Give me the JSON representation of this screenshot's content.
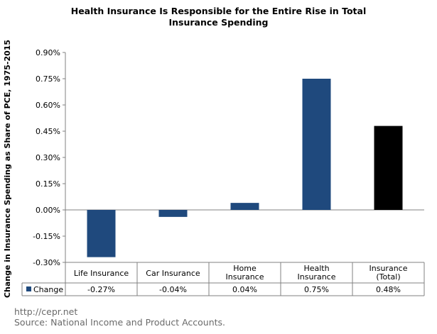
{
  "source": {
    "url": "http://cepr.net",
    "note": "Source: National Income and Product Accounts."
  },
  "chart_data": {
    "type": "bar",
    "title": "Health Insurance Is Responsible for the Entire Rise in Total Insurance Spending",
    "title_lines": [
      "Health Insurance Is Responsible for the Entire Rise in Total",
      "Insurance Spending"
    ],
    "xlabel": "",
    "ylabel": "Change in Insurance Spending as Share of PCE, 1975-2015",
    "ylim": [
      -0.3,
      0.9
    ],
    "yticks": [
      0.9,
      0.75,
      0.6,
      0.45,
      0.3,
      0.15,
      0.0,
      -0.15,
      -0.3
    ],
    "ytick_labels": [
      "0.90%",
      "0.75%",
      "0.60%",
      "0.45%",
      "0.30%",
      "0.15%",
      "0.00%",
      "-0.15%",
      "-0.30%"
    ],
    "categories": [
      "Life Insurance",
      "Car Insurance",
      "Home Insurance",
      "Health Insurance",
      "Insurance (Total)"
    ],
    "category_lines": [
      [
        "Life Insurance"
      ],
      [
        "Car Insurance"
      ],
      [
        "Home",
        "Insurance"
      ],
      [
        "Health",
        "Insurance"
      ],
      [
        "Insurance",
        "(Total)"
      ]
    ],
    "series": [
      {
        "name": "Change",
        "values": [
          -0.27,
          -0.04,
          0.04,
          0.75,
          0.48
        ],
        "value_labels": [
          "-0.27%",
          "-0.04%",
          "0.04%",
          "0.75%",
          "0.48%"
        ]
      }
    ],
    "bar_colors": [
      "#1f497d",
      "#1f497d",
      "#1f497d",
      "#1f497d",
      "#000000"
    ],
    "legend_color": "#1f497d",
    "grid": false,
    "legend_placement": "data-table"
  }
}
